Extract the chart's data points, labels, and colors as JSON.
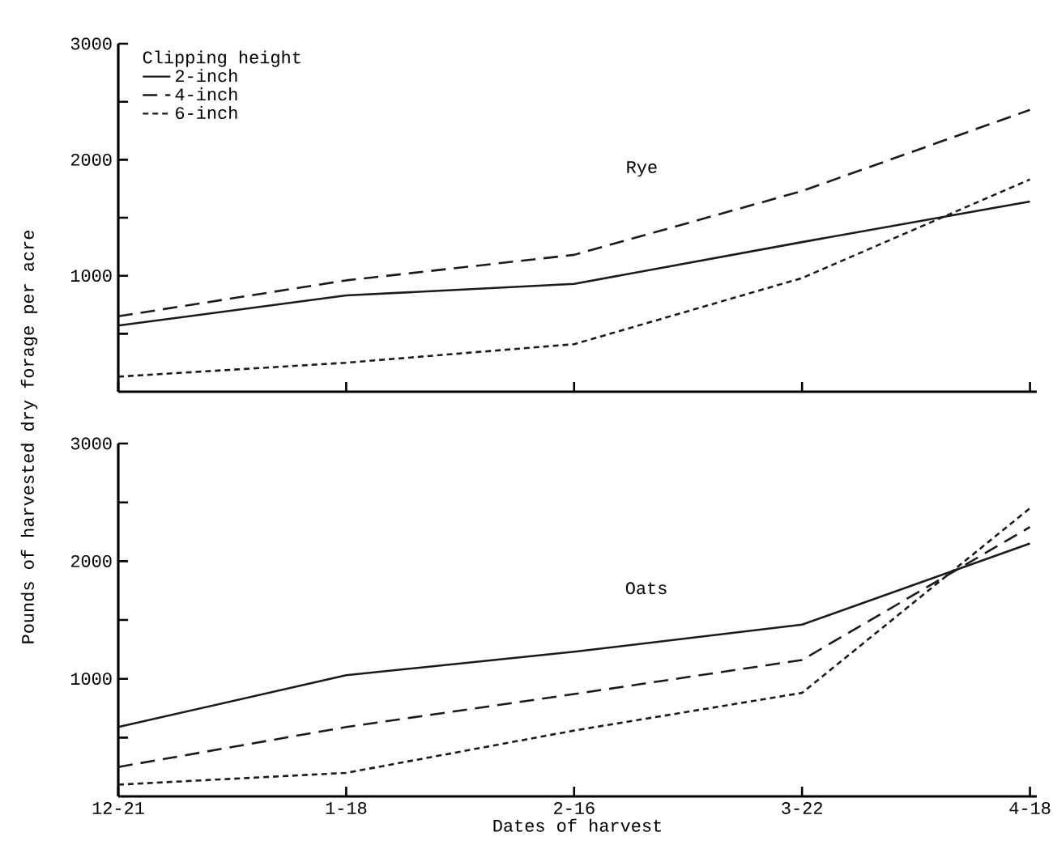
{
  "chart_data": [
    {
      "type": "line",
      "title": "Rye",
      "ylabel": "Pounds of harvested dry forage per acre",
      "legend_title": "Clipping height",
      "legend": "top left",
      "tick_labels": "y",
      "grid": false,
      "marker": "none",
      "categories": [
        null,
        null,
        null,
        null,
        null
      ],
      "ylim": [
        0,
        3000
      ],
      "yticks": [
        {
          "value": 500,
          "label": null
        },
        1000,
        {
          "value": 1500,
          "label": null
        },
        2000,
        {
          "value": 2500,
          "label": null
        },
        3000
      ],
      "series": [
        {
          "name": "2-inch",
          "color": "#1a1a1a",
          "line_style": "solid",
          "values": [
            570,
            830,
            930,
            1290,
            1640
          ]
        },
        {
          "name": "4-inch",
          "color": "#1a1a1a",
          "line_style": "dashed",
          "values": [
            650,
            960,
            1180,
            1730,
            2430
          ]
        },
        {
          "name": "6-inch",
          "color": "#1a1a1a",
          "line_style": "dotted",
          "values": [
            130,
            250,
            410,
            980,
            1830
          ]
        }
      ]
    },
    {
      "type": "line",
      "title": "Oats",
      "xlabel": "Dates of harvest",
      "grid": false,
      "marker": "none",
      "categories": [
        "12-21",
        "1-18",
        "2-16",
        "3-22",
        "4-18"
      ],
      "ylim": [
        0,
        3000
      ],
      "yticks": [
        {
          "value": 500,
          "label": null
        },
        1000,
        {
          "value": 1500,
          "label": null
        },
        2000,
        {
          "value": 2500,
          "label": null
        },
        3000
      ],
      "series": [
        {
          "color": "#1a1a1a",
          "line_style": "solid",
          "values": [
            590,
            1030,
            1230,
            1460,
            2150
          ]
        },
        {
          "color": "#1a1a1a",
          "line_style": "dashed",
          "values": [
            250,
            590,
            870,
            1160,
            2290
          ]
        },
        {
          "color": "#1a1a1a",
          "line_style": "dotted",
          "values": [
            100,
            200,
            560,
            880,
            2450
          ]
        }
      ]
    }
  ]
}
